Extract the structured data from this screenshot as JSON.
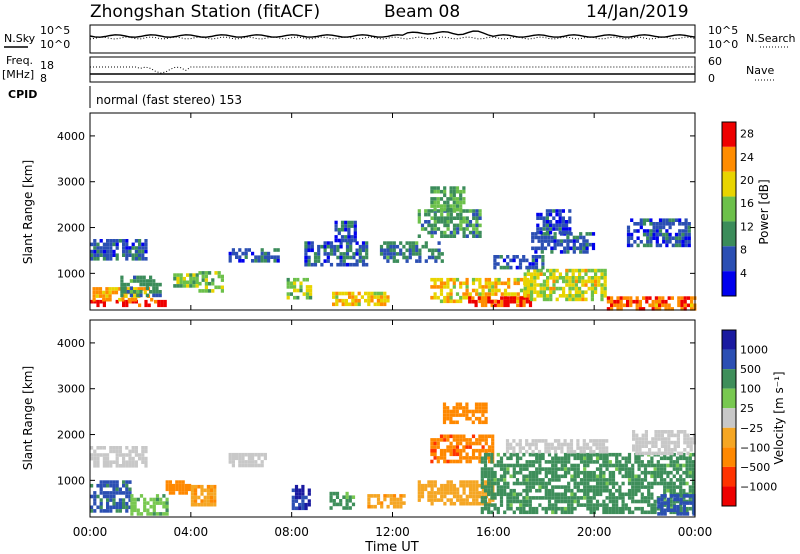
{
  "header": {
    "station": "Zhongshan Station (fitACF)",
    "beam": "Beam 08",
    "date": "14/Jan/2019",
    "scheme": "normal (fast stereo) 153"
  },
  "side_labels": {
    "nsky": "N.Sky",
    "nsearch": "N.Search",
    "freq_top": "Freq.",
    "freq_unit": "[MHz]",
    "nave": "Nave",
    "cpid": "CPID"
  },
  "noise_panel": {
    "left_ticks": [
      "10^5",
      "10^0"
    ],
    "right_ticks": [
      "10^5",
      "10^0"
    ]
  },
  "freq_panel": {
    "left_ticks": [
      "18",
      "8"
    ],
    "right_ticks": [
      "60",
      "0"
    ]
  },
  "colors": {
    "power_scale": [
      "#0000ee",
      "#2b4fb3",
      "#3b8c5a",
      "#6cc04a",
      "#e8d400",
      "#ff8c00",
      "#ee0000"
    ],
    "velocity_scale": [
      "#ee0000",
      "#ff3300",
      "#ff8800",
      "#f5a623",
      "#c8c8c8",
      "#78c850",
      "#3e8e5a",
      "#2b4fb3",
      "#1a1aa0"
    ]
  },
  "chart_data": [
    {
      "type": "heatmap",
      "name": "power",
      "ylabel": "Slant Range [km]",
      "yticks": [
        "1000",
        "2000",
        "3000",
        "4000"
      ],
      "ylim": [
        200,
        4500
      ],
      "colorbar_label": "Power [dB]",
      "colorbar_ticks": [
        "4",
        "8",
        "12",
        "16",
        "20",
        "24",
        "28"
      ],
      "colorbar_range": [
        0,
        30
      ],
      "regions": [
        {
          "t0": 0.0,
          "t1": 2.2,
          "r0": 1350,
          "r1": 1750,
          "v": 7
        },
        {
          "t0": 0.0,
          "t1": 3.0,
          "r0": 280,
          "r1": 420,
          "v": 28
        },
        {
          "t0": 0.1,
          "t1": 2.5,
          "r0": 420,
          "r1": 700,
          "v": 22
        },
        {
          "t0": 1.2,
          "t1": 2.8,
          "r0": 550,
          "r1": 950,
          "v": 10
        },
        {
          "t0": 3.3,
          "t1": 4.2,
          "r0": 700,
          "r1": 1000,
          "v": 15
        },
        {
          "t0": 4.3,
          "t1": 5.3,
          "r0": 650,
          "r1": 1050,
          "v": 14
        },
        {
          "t0": 5.5,
          "t1": 7.5,
          "r0": 1250,
          "r1": 1550,
          "v": 6
        },
        {
          "t0": 7.8,
          "t1": 8.8,
          "r0": 500,
          "r1": 900,
          "v": 16
        },
        {
          "t0": 8.5,
          "t1": 11.0,
          "r0": 1200,
          "r1": 1700,
          "v": 7
        },
        {
          "t0": 9.7,
          "t1": 10.5,
          "r0": 1750,
          "r1": 2150,
          "v": 7
        },
        {
          "t0": 9.6,
          "t1": 11.8,
          "r0": 300,
          "r1": 600,
          "v": 20
        },
        {
          "t0": 11.5,
          "t1": 14.0,
          "r0": 1300,
          "r1": 1700,
          "v": 9
        },
        {
          "t0": 13.0,
          "t1": 15.5,
          "r0": 1800,
          "r1": 2400,
          "v": 11
        },
        {
          "t0": 13.5,
          "t1": 14.8,
          "r0": 2400,
          "r1": 2900,
          "v": 13
        },
        {
          "t0": 13.5,
          "t1": 17.5,
          "r0": 400,
          "r1": 900,
          "v": 20
        },
        {
          "t0": 15.0,
          "t1": 17.5,
          "r0": 300,
          "r1": 500,
          "v": 27
        },
        {
          "t0": 17.2,
          "t1": 20.5,
          "r0": 450,
          "r1": 1100,
          "v": 18
        },
        {
          "t0": 16.0,
          "t1": 18.0,
          "r0": 1100,
          "r1": 1400,
          "v": 7
        },
        {
          "t0": 17.5,
          "t1": 20.0,
          "r0": 1500,
          "r1": 1900,
          "v": 7
        },
        {
          "t0": 17.7,
          "t1": 19.0,
          "r0": 1900,
          "r1": 2400,
          "v": 6
        },
        {
          "t0": 21.3,
          "t1": 23.8,
          "r0": 1600,
          "r1": 2200,
          "v": 6
        },
        {
          "t0": 20.5,
          "t1": 24.0,
          "r0": 250,
          "r1": 500,
          "v": 25
        }
      ]
    },
    {
      "type": "heatmap",
      "name": "velocity",
      "ylabel": "Slant Range [km]",
      "yticks": [
        "1000",
        "2000",
        "3000",
        "4000"
      ],
      "ylim": [
        200,
        4500
      ],
      "colorbar_label": "Velocity [m s⁻¹]",
      "colorbar_ticks": [
        "1000",
        "500",
        "100",
        "25",
        "−25",
        "−100",
        "−500",
        "−1000"
      ],
      "regions": [
        {
          "t0": 0.0,
          "t1": 2.2,
          "r0": 1350,
          "r1": 1750,
          "v": 0
        },
        {
          "t0": 0.0,
          "t1": 1.6,
          "r0": 300,
          "r1": 1000,
          "v": 600
        },
        {
          "t0": 1.6,
          "t1": 3.0,
          "r0": 300,
          "r1": 700,
          "v": 80
        },
        {
          "t0": 3.0,
          "t1": 4.0,
          "r0": 700,
          "r1": 1000,
          "v": -300
        },
        {
          "t0": 4.0,
          "t1": 5.0,
          "r0": 500,
          "r1": 900,
          "v": -80
        },
        {
          "t0": 5.5,
          "t1": 7.0,
          "r0": 1300,
          "r1": 1600,
          "v": 0
        },
        {
          "t0": 8.0,
          "t1": 8.7,
          "r0": 350,
          "r1": 900,
          "v": 1000
        },
        {
          "t0": 9.5,
          "t1": 10.5,
          "r0": 400,
          "r1": 750,
          "v": 150
        },
        {
          "t0": 11.0,
          "t1": 12.5,
          "r0": 400,
          "r1": 700,
          "v": -80
        },
        {
          "t0": 13.5,
          "t1": 16.0,
          "r0": 1400,
          "r1": 2000,
          "v": -400
        },
        {
          "t0": 14.0,
          "t1": 15.7,
          "r0": 2300,
          "r1": 2700,
          "v": -300
        },
        {
          "t0": 13.0,
          "t1": 16.0,
          "r0": 500,
          "r1": 1000,
          "v": -60
        },
        {
          "t0": 15.5,
          "t1": 24.0,
          "r0": 300,
          "r1": 1600,
          "v": 150
        },
        {
          "t0": 16.5,
          "t1": 20.5,
          "r0": 1600,
          "r1": 1900,
          "v": 0
        },
        {
          "t0": 21.5,
          "t1": 24.0,
          "r0": 1600,
          "r1": 2100,
          "v": 0
        },
        {
          "t0": 22.5,
          "t1": 24.0,
          "r0": 300,
          "r1": 700,
          "v": 700
        }
      ]
    }
  ],
  "x_axis": {
    "ticks": [
      "00:00",
      "04:00",
      "08:00",
      "12:00",
      "16:00",
      "20:00",
      "00:00"
    ],
    "label": "Time UT"
  }
}
